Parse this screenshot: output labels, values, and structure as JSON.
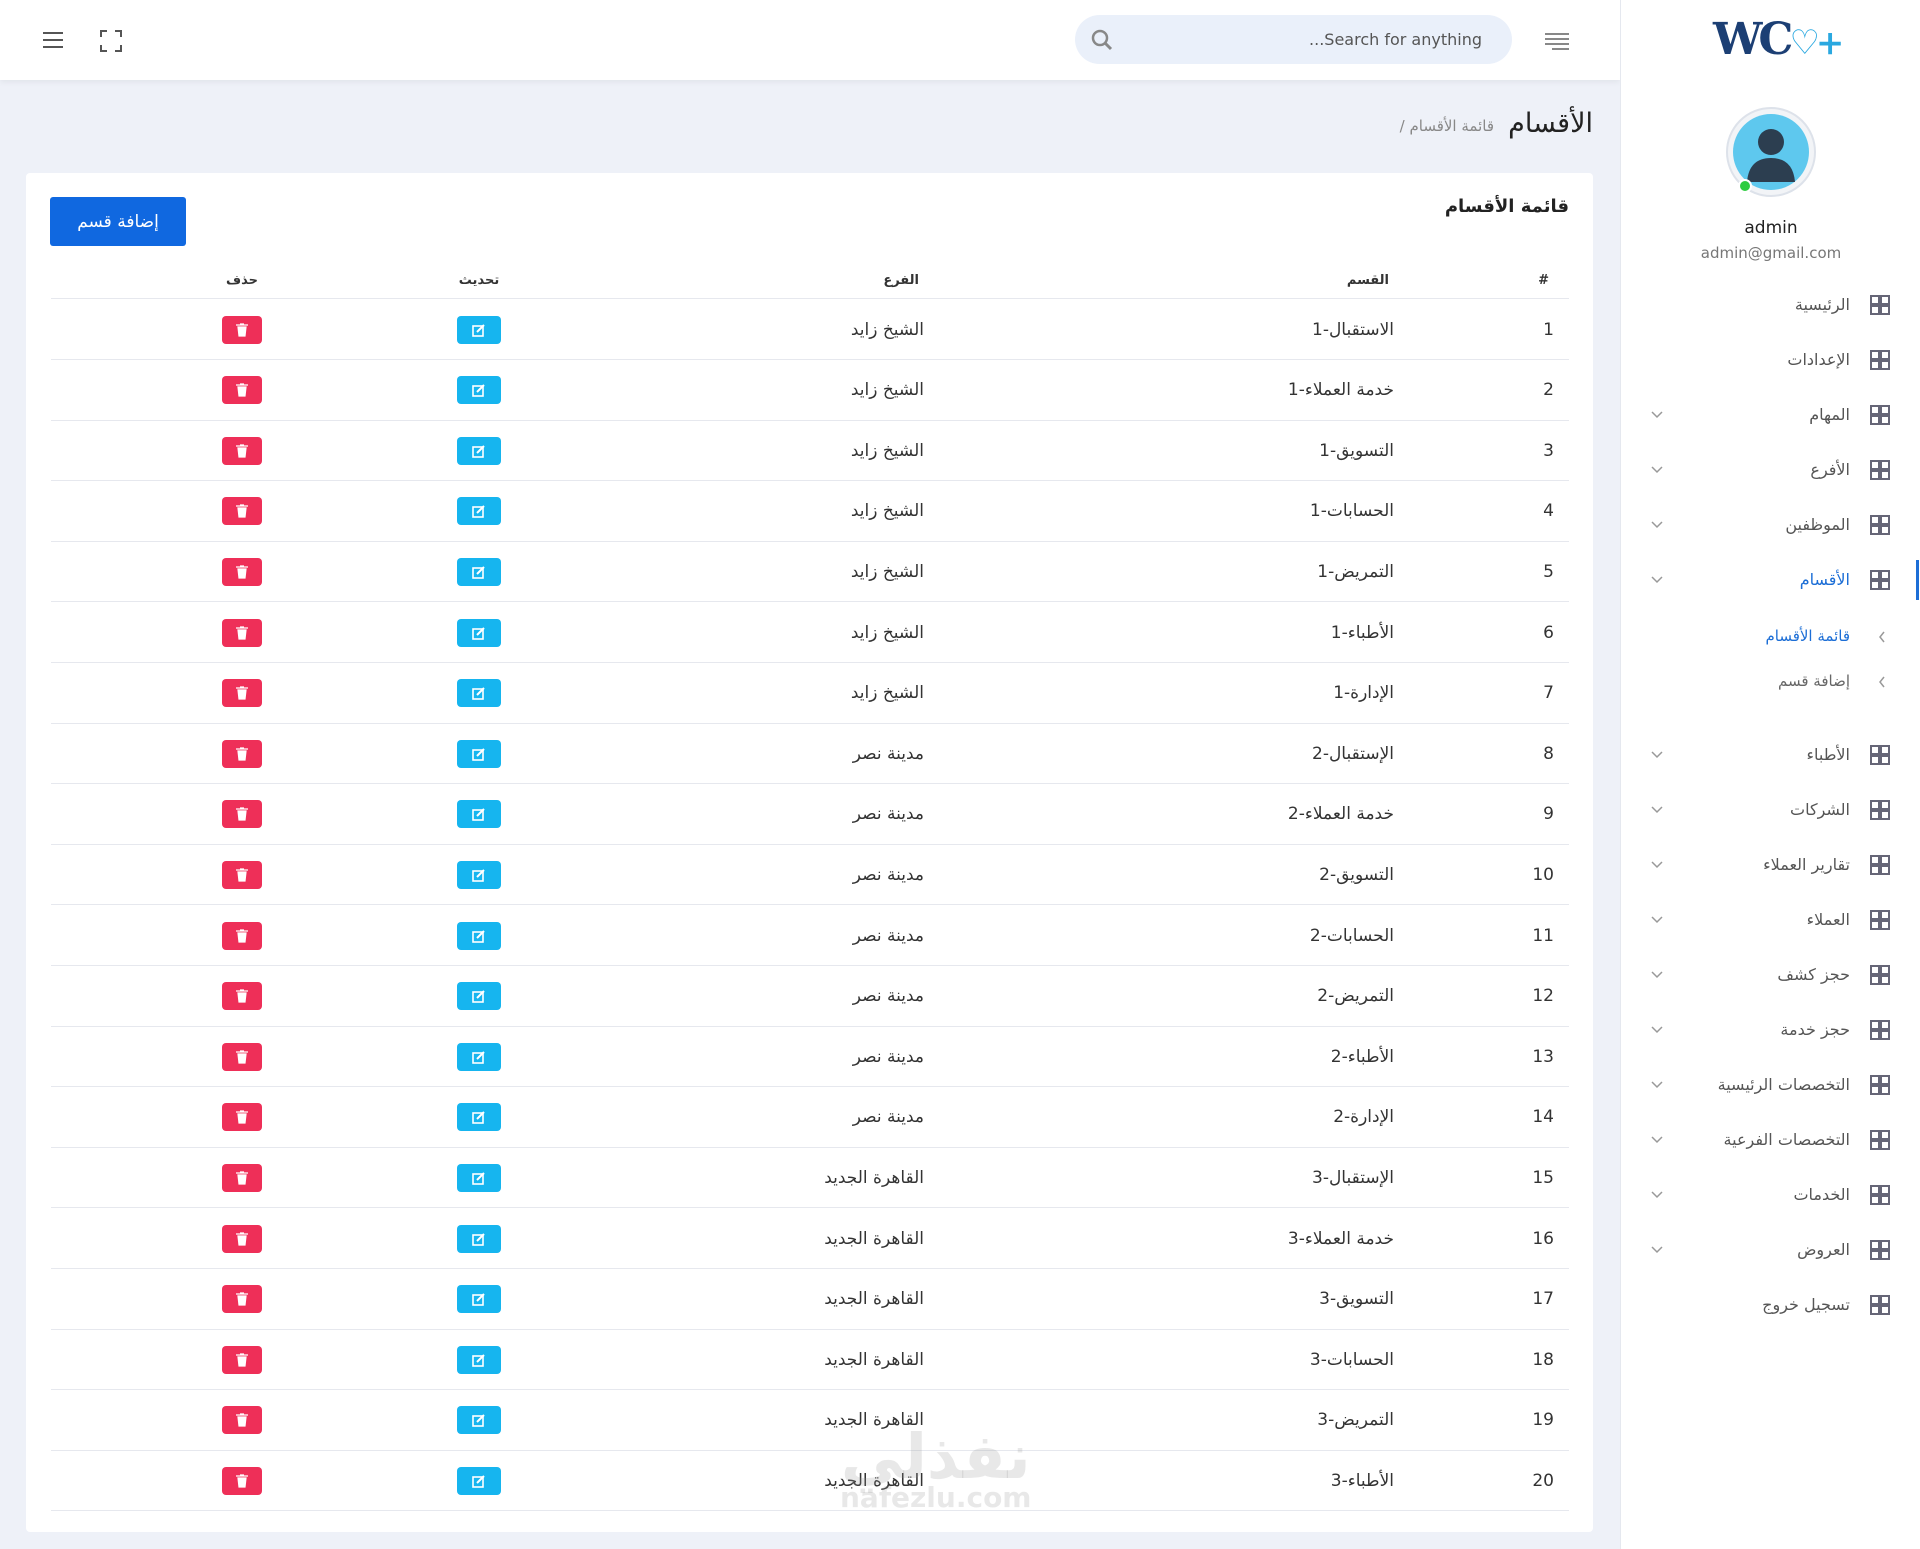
{
  "header": {
    "search_placeholder": "...Search for anything"
  },
  "sidebar": {
    "logo": "WC",
    "user": {
      "name": "admin",
      "email": "admin@gmail.com"
    },
    "menu": [
      {
        "label": "الرئيسية",
        "expandable": false
      },
      {
        "label": "الإعدادات",
        "expandable": false
      },
      {
        "label": "المهام",
        "expandable": true
      },
      {
        "label": "الأفرع",
        "expandable": true
      },
      {
        "label": "الموظفين",
        "expandable": true
      },
      {
        "label": "الأقسام",
        "expandable": true,
        "active": true
      }
    ],
    "submenu": [
      {
        "label": "قائمة الأقسام",
        "active": true
      },
      {
        "label": "إضافة قسم"
      }
    ],
    "menu_more": [
      {
        "label": "الأطباء",
        "expandable": true
      },
      {
        "label": "الشركات",
        "expandable": true
      },
      {
        "label": "تقارير العملاء",
        "expandable": true
      },
      {
        "label": "العملاء",
        "expandable": true
      },
      {
        "label": "حجز كشف",
        "expandable": true
      },
      {
        "label": "حجز خدمة",
        "expandable": true
      },
      {
        "label": "التخصصات الرئيسية",
        "expandable": true
      },
      {
        "label": "التخصصات الفرعية",
        "expandable": true
      },
      {
        "label": "الخدمات",
        "expandable": true
      },
      {
        "label": "العروض",
        "expandable": true
      },
      {
        "label": "تسجيل خروج",
        "expandable": false
      }
    ]
  },
  "breadcrumb": {
    "title": "الأقسام",
    "current": "قائمة الأقسام"
  },
  "card": {
    "title": "قائمة الأقسام",
    "add_button": "إضافة قسم"
  },
  "table": {
    "columns": [
      "#",
      "القسم",
      "الفرع",
      "تحديث",
      "حذف"
    ],
    "rows": [
      [
        1,
        "الاستقبال-1",
        "الشيخ زايد"
      ],
      [
        2,
        "خدمة العملاء-1",
        "الشيخ زايد"
      ],
      [
        3,
        "التسويق-1",
        "الشيخ زايد"
      ],
      [
        4,
        "الحسابات-1",
        "الشيخ زايد"
      ],
      [
        5,
        "التمريض-1",
        "الشيخ زايد"
      ],
      [
        6,
        "الأطباء-1",
        "الشيخ زايد"
      ],
      [
        7,
        "الإدارة-1",
        "الشيخ زايد"
      ],
      [
        8,
        "الإستقبال-2",
        "مدينة نصر"
      ],
      [
        9,
        "خدمة العملاء-2",
        "مدينة نصر"
      ],
      [
        10,
        "التسويق-2",
        "مدينة نصر"
      ],
      [
        11,
        "الحسابات-2",
        "مدينة نصر"
      ],
      [
        12,
        "التمريض-2",
        "مدينة نصر"
      ],
      [
        13,
        "الأطباء-2",
        "مدينة نصر"
      ],
      [
        14,
        "الإدارة-2",
        "مدينة نصر"
      ],
      [
        15,
        "الإستقبال-3",
        "القاهرة الجديد"
      ],
      [
        16,
        "خدمة العملاء-3",
        "القاهرة الجديد"
      ],
      [
        17,
        "التسويق-3",
        "القاهرة الجديد"
      ],
      [
        18,
        "الحسابات-3",
        "القاهرة الجديد"
      ],
      [
        19,
        "التمريض-3",
        "القاهرة الجديد"
      ],
      [
        20,
        "الأطباء-3",
        "القاهرة الجديد"
      ]
    ]
  },
  "watermark": {
    "text": "نفذلي",
    "url": "nafezlu.com"
  }
}
